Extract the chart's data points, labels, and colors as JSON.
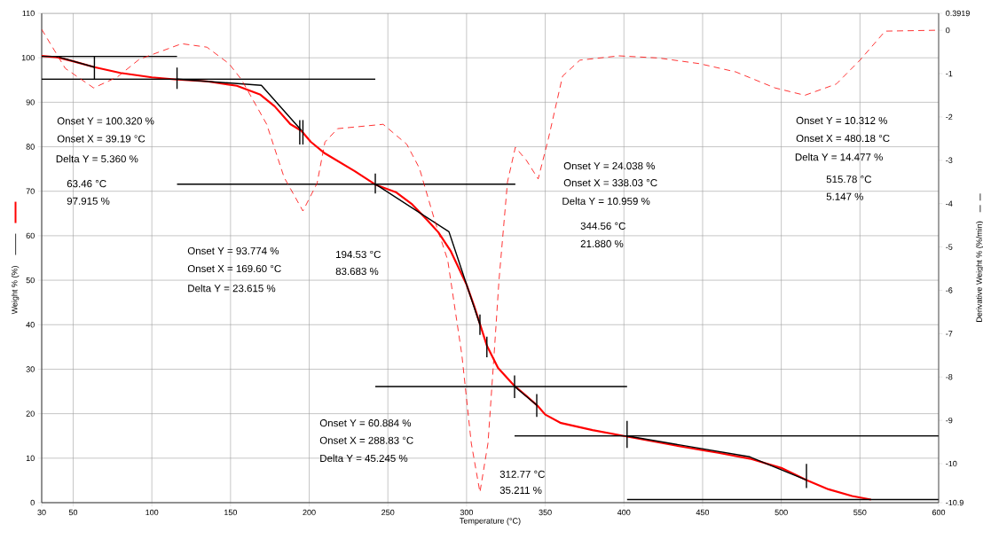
{
  "chart_data": {
    "type": "line",
    "xlabel": "Temperature (°C)",
    "ylabel": "Weight % (%)",
    "y2label": "Derivative Weight % (%/min)",
    "xlim": [
      30,
      600
    ],
    "xticks": [
      30,
      50,
      100,
      150,
      200,
      250,
      300,
      350,
      400,
      450,
      500,
      550,
      600
    ],
    "ylim": [
      0,
      110
    ],
    "yticks": [
      0,
      10,
      20,
      30,
      40,
      50,
      60,
      70,
      80,
      90,
      100,
      110
    ],
    "y2lim": [
      -10.9,
      0.3919
    ],
    "y2ticks": [
      -10.9,
      -10,
      -9,
      -8,
      -7,
      -6,
      -5,
      -4,
      -3,
      -2,
      -1,
      0,
      0.3919
    ],
    "grid": true,
    "marker": "none",
    "series": [
      {
        "color": "#ff0000",
        "line_style": "solid",
        "x": [
          30,
          40,
          50,
          63.5,
          80,
          100,
          116,
          135,
          154,
          169,
          178,
          188,
          195,
          201,
          210,
          229,
          242,
          255,
          265,
          275,
          282,
          290,
          300,
          305,
          313,
          320,
          330,
          338,
          345,
          350,
          360,
          380,
          400,
          420,
          440,
          460,
          480,
          500,
          516,
          530,
          545,
          557
        ],
        "values": [
          100.4,
          100.1,
          99.2,
          97.9,
          96.6,
          95.6,
          95.1,
          94.7,
          93.7,
          91.7,
          89.1,
          85.1,
          83.6,
          81.1,
          78.5,
          74.5,
          71.5,
          69.8,
          67.2,
          63.5,
          60.8,
          56.5,
          49.0,
          44.0,
          35.2,
          30.3,
          26.4,
          24.0,
          21.8,
          19.8,
          17.9,
          16.3,
          15.0,
          13.7,
          12.4,
          11.2,
          9.9,
          7.8,
          5.1,
          3.0,
          1.5,
          0.7
        ]
      },
      {
        "color": "#ff0000",
        "line_style": "dashed",
        "axis": "y2",
        "x": [
          30,
          45,
          63,
          78,
          92,
          119,
          135,
          149,
          157,
          173,
          184,
          196,
          205,
          210,
          218,
          247,
          262,
          270,
          280,
          288,
          297,
          303,
          308.5,
          313.6,
          317.5,
          320.6,
          326,
          331,
          338,
          345.5,
          352,
          361,
          372,
          397,
          422,
          448,
          471,
          496,
          515,
          535,
          550,
          566,
          598
        ],
        "values": [
          0.02,
          -0.88,
          -1.33,
          -1.08,
          -0.67,
          -0.31,
          -0.39,
          -0.77,
          -1.14,
          -2.17,
          -3.39,
          -4.17,
          -3.53,
          -2.58,
          -2.27,
          -2.17,
          -2.63,
          -3.18,
          -4.42,
          -5.3,
          -7.49,
          -9.53,
          -10.66,
          -9.53,
          -7.48,
          -5.77,
          -3.5,
          -2.7,
          -3.0,
          -3.43,
          -2.5,
          -1.06,
          -0.69,
          -0.59,
          -0.64,
          -0.77,
          -0.96,
          -1.33,
          -1.5,
          -1.24,
          -0.69,
          -0.02,
          0.0
        ]
      },
      {
        "color": "#000000",
        "line_style": "solid",
        "x": [
          30,
          116
        ],
        "values": [
          100.3,
          100.3
        ]
      },
      {
        "color": "#000000",
        "line_style": "solid",
        "x": [
          30,
          242
        ],
        "values": [
          95.2,
          95.2
        ]
      },
      {
        "color": "#000000",
        "line_style": "solid",
        "x": [
          116,
          331
        ],
        "values": [
          71.6,
          71.6
        ]
      },
      {
        "color": "#000000",
        "line_style": "solid",
        "x": [
          242,
          402
        ],
        "values": [
          26.1,
          26.1
        ]
      },
      {
        "color": "#000000",
        "line_style": "solid",
        "x": [
          330.5,
          600
        ],
        "values": [
          15.0,
          15.0
        ]
      },
      {
        "color": "#000000",
        "line_style": "solid",
        "x": [
          402,
          600
        ],
        "values": [
          0.7,
          0.7
        ]
      },
      {
        "color": "#000000",
        "line_style": "solid",
        "x": [
          39.2,
          63.5
        ],
        "values": [
          100.3,
          97.9
        ]
      },
      {
        "color": "#000000",
        "line_style": "solid",
        "x": [
          116,
          169.6,
          195
        ],
        "values": [
          95.2,
          93.8,
          83.7
        ]
      },
      {
        "color": "#000000",
        "line_style": "solid",
        "x": [
          242,
          288.8,
          308.5
        ],
        "values": [
          71.6,
          60.9,
          40.0
        ]
      },
      {
        "color": "#000000",
        "line_style": "solid",
        "x": [
          330.5,
          344.6
        ],
        "values": [
          26.1,
          21.9
        ]
      },
      {
        "color": "#000000",
        "line_style": "solid",
        "x": [
          402,
          480,
          515.8
        ],
        "values": [
          15.0,
          10.3,
          5.1
        ]
      },
      {
        "color": "#000000",
        "line_style": "solid",
        "x": [
          63.5,
          63.5
        ],
        "values": [
          95.2,
          100.3
        ]
      },
      {
        "color": "#000000",
        "line_style": "solid",
        "x": [
          116,
          116
        ],
        "values": [
          93.0,
          97.8
        ]
      },
      {
        "color": "#000000",
        "line_style": "solid",
        "x": [
          194,
          194
        ],
        "values": [
          80.5,
          86.0
        ]
      },
      {
        "color": "#000000",
        "line_style": "solid",
        "x": [
          196,
          196
        ],
        "values": [
          80.5,
          86.0
        ]
      },
      {
        "color": "#000000",
        "line_style": "solid",
        "x": [
          242,
          242
        ],
        "values": [
          69.5,
          74.0
        ]
      },
      {
        "color": "#000000",
        "line_style": "solid",
        "x": [
          308.5,
          308.5
        ],
        "values": [
          37.7,
          42.3
        ]
      },
      {
        "color": "#000000",
        "line_style": "solid",
        "x": [
          312.9,
          312.9
        ],
        "values": [
          32.7,
          37.3
        ]
      },
      {
        "color": "#000000",
        "line_style": "solid",
        "x": [
          330.5,
          330.5
        ],
        "values": [
          23.5,
          28.6
        ]
      },
      {
        "color": "#000000",
        "line_style": "solid",
        "x": [
          344.6,
          344.6
        ],
        "values": [
          19.3,
          24.4
        ]
      },
      {
        "color": "#000000",
        "line_style": "solid",
        "x": [
          402,
          402
        ],
        "values": [
          12.3,
          18.4
        ]
      },
      {
        "color": "#000000",
        "line_style": "solid",
        "x": [
          516,
          516
        ],
        "values": [
          3.3,
          8.7
        ]
      }
    ],
    "annotations": [
      "Onset Y = 100.320 %",
      "Onset X = 39.19 °C",
      "Delta Y = 5.360 %",
      "63.46 °C",
      "97.915 %",
      "Onset Y = 93.774 %",
      "Onset X = 169.60 °C",
      "Delta Y = 23.615 %",
      "194.53 °C",
      "83.683 %",
      "Onset Y = 24.038 %",
      "Onset X = 338.03 °C",
      "Delta Y = 10.959 %",
      "344.56 °C",
      "21.880 %",
      "Onset Y = 10.312 %",
      "Onset X = 480.18 °C",
      "Delta Y = 14.477 %",
      "515.78 °C",
      "5.147 %",
      "Onset Y = 60.884 %",
      "Onset X = 288.83 °C",
      "Delta Y = 45.245 %",
      "312.77 °C",
      "35.211 %"
    ]
  }
}
